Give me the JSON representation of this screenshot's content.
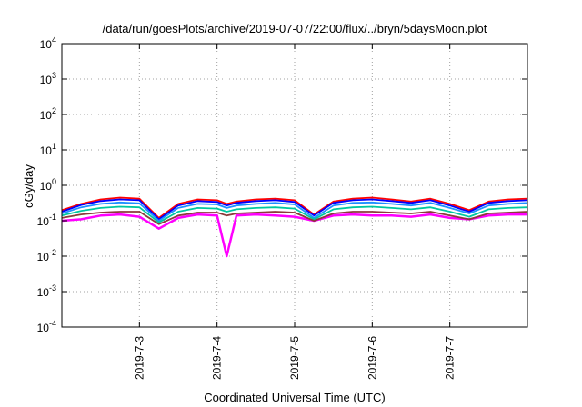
{
  "chart_data": {
    "type": "line",
    "title": "/data/run/goesPlots/archive/2019-07-07/22:00/flux/../bryn/5daysMoon.plot",
    "xlabel": "Coordinated Universal Time (UTC)",
    "ylabel": "cGy/day",
    "yscale": "log",
    "ylim": [
      0.0001,
      10000
    ],
    "xlim": [
      "2019-07-02 00:00",
      "2019-07-08 00:00"
    ],
    "grid": true,
    "y_ticks": [
      {
        "value": 0.0001,
        "base": "10",
        "exp": "-4"
      },
      {
        "value": 0.001,
        "base": "10",
        "exp": "-3"
      },
      {
        "value": 0.01,
        "base": "10",
        "exp": "-2"
      },
      {
        "value": 0.1,
        "base": "10",
        "exp": "-1"
      },
      {
        "value": 1,
        "base": "10",
        "exp": "0"
      },
      {
        "value": 10,
        "base": "10",
        "exp": "1"
      },
      {
        "value": 100,
        "base": "10",
        "exp": "2"
      },
      {
        "value": 1000,
        "base": "10",
        "exp": "3"
      },
      {
        "value": 10000,
        "base": "10",
        "exp": "4"
      }
    ],
    "x_ticks": [
      {
        "value": "2019-07-03 00:00",
        "label": "2019-7-3"
      },
      {
        "value": "2019-07-04 00:00",
        "label": "2019-7-4"
      },
      {
        "value": "2019-07-05 00:00",
        "label": "2019-7-5"
      },
      {
        "value": "2019-07-06 00:00",
        "label": "2019-7-6"
      },
      {
        "value": "2019-07-07 00:00",
        "label": "2019-7-7"
      }
    ],
    "series": [
      {
        "color": "#ff00ff",
        "x": [
          "2019-07-02 00:00",
          "2019-07-02 06:00",
          "2019-07-02 12:00",
          "2019-07-02 18:00",
          "2019-07-03 00:00",
          "2019-07-03 06:00",
          "2019-07-03 12:00",
          "2019-07-03 18:00",
          "2019-07-04 00:00",
          "2019-07-04 03:00",
          "2019-07-04 06:00",
          "2019-07-04 12:00",
          "2019-07-04 18:00",
          "2019-07-05 00:00",
          "2019-07-05 06:00",
          "2019-07-05 12:00",
          "2019-07-05 18:00",
          "2019-07-06 00:00",
          "2019-07-06 06:00",
          "2019-07-06 12:00",
          "2019-07-06 18:00",
          "2019-07-07 00:00",
          "2019-07-07 06:00",
          "2019-07-07 12:00",
          "2019-07-07 18:00",
          "2019-07-08 00:00"
        ],
        "y": [
          0.1,
          0.11,
          0.14,
          0.15,
          0.13,
          0.06,
          0.12,
          0.15,
          0.14,
          0.01,
          0.14,
          0.15,
          0.14,
          0.13,
          0.1,
          0.14,
          0.15,
          0.14,
          0.14,
          0.13,
          0.15,
          0.12,
          0.11,
          0.14,
          0.15,
          0.15
        ]
      },
      {
        "color": "#ff0000",
        "x": [
          "2019-07-02 00:00",
          "2019-07-02 06:00",
          "2019-07-02 12:00",
          "2019-07-02 18:00",
          "2019-07-03 00:00",
          "2019-07-03 06:00",
          "2019-07-03 12:00",
          "2019-07-03 18:00",
          "2019-07-04 00:00",
          "2019-07-04 03:00",
          "2019-07-04 06:00",
          "2019-07-04 12:00",
          "2019-07-04 18:00",
          "2019-07-05 00:00",
          "2019-07-05 06:00",
          "2019-07-05 12:00",
          "2019-07-05 18:00",
          "2019-07-06 00:00",
          "2019-07-06 06:00",
          "2019-07-06 12:00",
          "2019-07-06 18:00",
          "2019-07-07 00:00",
          "2019-07-07 06:00",
          "2019-07-07 12:00",
          "2019-07-07 18:00",
          "2019-07-08 00:00"
        ],
        "y": [
          0.2,
          0.3,
          0.4,
          0.45,
          0.42,
          0.12,
          0.3,
          0.4,
          0.38,
          0.3,
          0.35,
          0.4,
          0.42,
          0.38,
          0.15,
          0.35,
          0.42,
          0.45,
          0.4,
          0.35,
          0.42,
          0.3,
          0.2,
          0.35,
          0.4,
          0.42
        ]
      },
      {
        "color": "#0000ff",
        "x": [
          "2019-07-02 00:00",
          "2019-07-02 06:00",
          "2019-07-02 12:00",
          "2019-07-02 18:00",
          "2019-07-03 00:00",
          "2019-07-03 06:00",
          "2019-07-03 12:00",
          "2019-07-03 18:00",
          "2019-07-04 00:00",
          "2019-07-04 03:00",
          "2019-07-04 06:00",
          "2019-07-04 12:00",
          "2019-07-04 18:00",
          "2019-07-05 00:00",
          "2019-07-05 06:00",
          "2019-07-05 12:00",
          "2019-07-05 18:00",
          "2019-07-06 00:00",
          "2019-07-06 06:00",
          "2019-07-06 12:00",
          "2019-07-06 18:00",
          "2019-07-07 00:00",
          "2019-07-07 06:00",
          "2019-07-07 12:00",
          "2019-07-07 18:00",
          "2019-07-08 00:00"
        ],
        "y": [
          0.18,
          0.28,
          0.36,
          0.4,
          0.38,
          0.11,
          0.27,
          0.36,
          0.34,
          0.27,
          0.32,
          0.36,
          0.38,
          0.34,
          0.14,
          0.32,
          0.38,
          0.4,
          0.36,
          0.32,
          0.38,
          0.27,
          0.18,
          0.32,
          0.36,
          0.38
        ]
      },
      {
        "color": "#1e90ff",
        "x": [
          "2019-07-02 00:00",
          "2019-07-02 06:00",
          "2019-07-02 12:00",
          "2019-07-02 18:00",
          "2019-07-03 00:00",
          "2019-07-03 06:00",
          "2019-07-03 12:00",
          "2019-07-03 18:00",
          "2019-07-04 00:00",
          "2019-07-04 03:00",
          "2019-07-04 06:00",
          "2019-07-04 12:00",
          "2019-07-04 18:00",
          "2019-07-05 00:00",
          "2019-07-05 06:00",
          "2019-07-05 12:00",
          "2019-07-05 18:00",
          "2019-07-06 00:00",
          "2019-07-06 06:00",
          "2019-07-06 12:00",
          "2019-07-06 18:00",
          "2019-07-07 00:00",
          "2019-07-07 06:00",
          "2019-07-07 12:00",
          "2019-07-07 18:00",
          "2019-07-08 00:00"
        ],
        "y": [
          0.16,
          0.24,
          0.3,
          0.33,
          0.31,
          0.1,
          0.23,
          0.3,
          0.29,
          0.23,
          0.27,
          0.3,
          0.32,
          0.29,
          0.12,
          0.27,
          0.32,
          0.33,
          0.3,
          0.27,
          0.32,
          0.23,
          0.16,
          0.27,
          0.3,
          0.32
        ]
      },
      {
        "color": "#00c8a0",
        "x": [
          "2019-07-02 00:00",
          "2019-07-02 06:00",
          "2019-07-02 12:00",
          "2019-07-02 18:00",
          "2019-07-03 00:00",
          "2019-07-03 06:00",
          "2019-07-03 12:00",
          "2019-07-03 18:00",
          "2019-07-04 00:00",
          "2019-07-04 03:00",
          "2019-07-04 06:00",
          "2019-07-04 12:00",
          "2019-07-04 18:00",
          "2019-07-05 00:00",
          "2019-07-05 06:00",
          "2019-07-05 12:00",
          "2019-07-05 18:00",
          "2019-07-06 00:00",
          "2019-07-06 06:00",
          "2019-07-06 12:00",
          "2019-07-06 18:00",
          "2019-07-07 00:00",
          "2019-07-07 06:00",
          "2019-07-07 12:00",
          "2019-07-07 18:00",
          "2019-07-08 00:00"
        ],
        "y": [
          0.14,
          0.19,
          0.23,
          0.25,
          0.24,
          0.09,
          0.18,
          0.23,
          0.22,
          0.18,
          0.21,
          0.23,
          0.24,
          0.22,
          0.11,
          0.21,
          0.24,
          0.25,
          0.23,
          0.21,
          0.24,
          0.18,
          0.13,
          0.21,
          0.23,
          0.24
        ]
      },
      {
        "color": "#8b3a3a",
        "x": [
          "2019-07-02 00:00",
          "2019-07-02 06:00",
          "2019-07-02 12:00",
          "2019-07-02 18:00",
          "2019-07-03 00:00",
          "2019-07-03 06:00",
          "2019-07-03 12:00",
          "2019-07-03 18:00",
          "2019-07-04 00:00",
          "2019-07-04 03:00",
          "2019-07-04 06:00",
          "2019-07-04 12:00",
          "2019-07-04 18:00",
          "2019-07-05 00:00",
          "2019-07-05 06:00",
          "2019-07-05 12:00",
          "2019-07-05 18:00",
          "2019-07-06 00:00",
          "2019-07-06 06:00",
          "2019-07-06 12:00",
          "2019-07-06 18:00",
          "2019-07-07 00:00",
          "2019-07-07 06:00",
          "2019-07-07 12:00",
          "2019-07-07 18:00",
          "2019-07-08 00:00"
        ],
        "y": [
          0.12,
          0.15,
          0.17,
          0.18,
          0.18,
          0.08,
          0.14,
          0.17,
          0.17,
          0.14,
          0.16,
          0.17,
          0.18,
          0.17,
          0.1,
          0.16,
          0.18,
          0.18,
          0.17,
          0.16,
          0.18,
          0.14,
          0.11,
          0.16,
          0.17,
          0.18
        ]
      }
    ]
  }
}
